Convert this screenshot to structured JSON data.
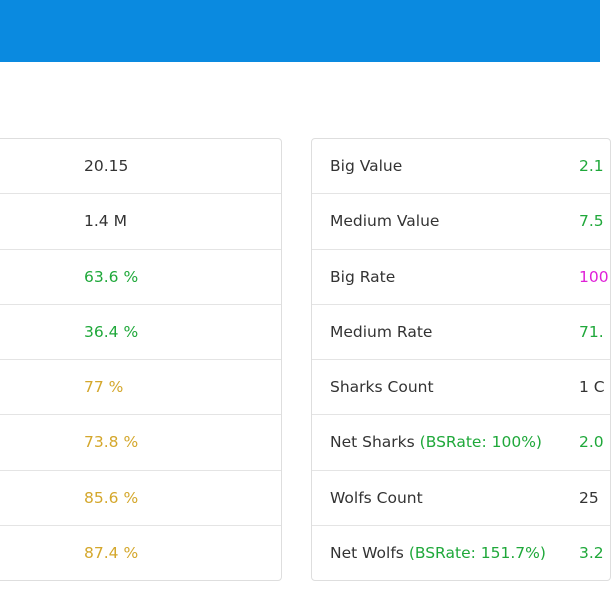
{
  "colors": {
    "header": "#0a8ae0",
    "green": "#1fa83a",
    "gold": "#d4a72c",
    "magenta": "#e020d8",
    "text": "#333333"
  },
  "left_table": {
    "rows": [
      {
        "value": "20.15",
        "color": "default"
      },
      {
        "value": "1.4 M",
        "color": "default"
      },
      {
        "value": "63.6 %",
        "color": "green"
      },
      {
        "value": "36.4 %",
        "color": "green"
      },
      {
        "value": "77 %",
        "color": "gold"
      },
      {
        "value": "73.8 %",
        "color": "gold"
      },
      {
        "value": "85.6 %",
        "color": "gold"
      },
      {
        "value": "87.4 %",
        "color": "gold"
      }
    ]
  },
  "right_table": {
    "rows": [
      {
        "label": "Big Value",
        "note": "",
        "value": "2.1",
        "color": "green"
      },
      {
        "label": "Medium Value",
        "note": "",
        "value": "7.5",
        "color": "green"
      },
      {
        "label": "Big Rate",
        "note": "",
        "value": "100",
        "color": "magenta"
      },
      {
        "label": "Medium Rate",
        "note": "",
        "value": "71.",
        "color": "green"
      },
      {
        "label": "Sharks Count",
        "note": "",
        "value": "1 C",
        "color": "default"
      },
      {
        "label": "Net Sharks",
        "note": "(BSRate: 100%)",
        "value": "2.0",
        "color": "green"
      },
      {
        "label": "Wolfs Count",
        "note": "",
        "value": "25",
        "color": "default"
      },
      {
        "label": "Net Wolfs",
        "note": "(BSRate: 151.7%)",
        "value": "3.2",
        "color": "green"
      }
    ]
  }
}
